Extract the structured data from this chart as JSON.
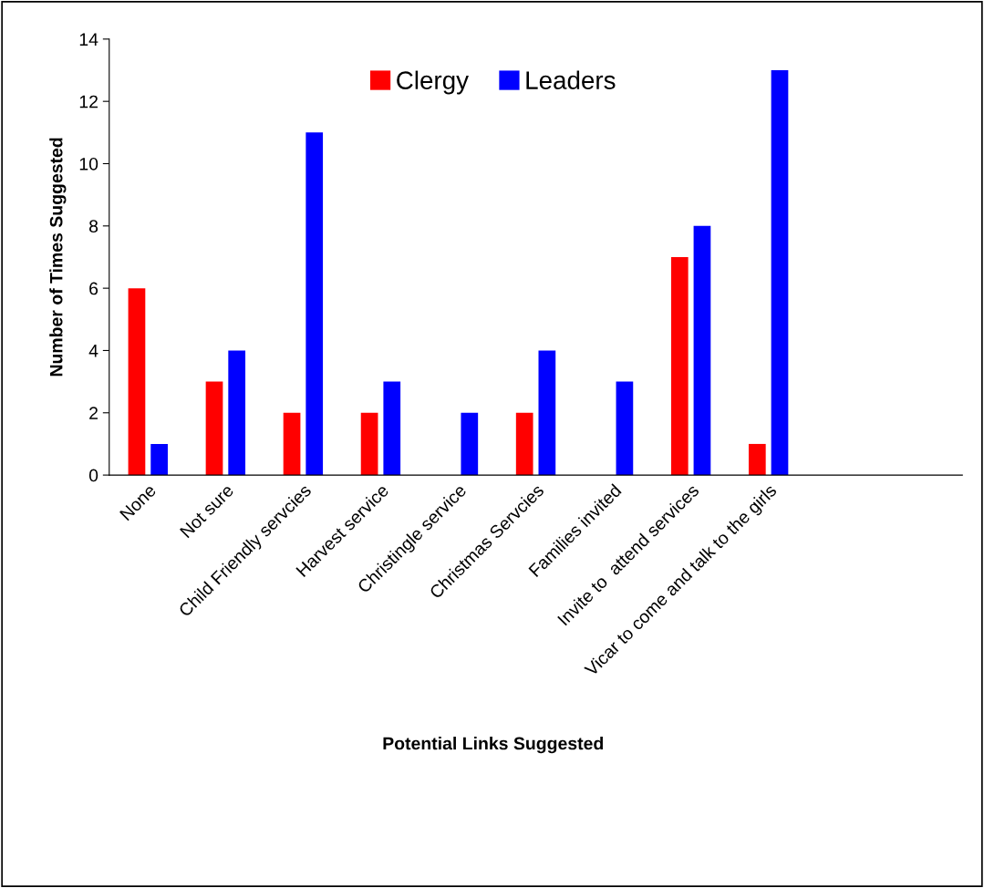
{
  "chart_data": {
    "type": "bar",
    "xlabel": "Potential Links Suggested",
    "ylabel": "Number of Times Suggested",
    "categories": [
      "None",
      "Not sure",
      "Child Friendly servcies",
      "Harvest service",
      "Christingle service",
      "Christmas Servcies",
      "Families invited",
      "Invite to  attend services",
      "Vicar to come and talk to the girls",
      null,
      null
    ],
    "series": [
      {
        "name": "Clergy",
        "color": "#ff0000",
        "values": [
          6,
          3,
          2,
          2,
          null,
          2,
          null,
          7,
          1,
          null,
          null
        ]
      },
      {
        "name": "Leaders",
        "color": "#0000ff",
        "values": [
          1,
          4,
          11,
          3,
          2,
          4,
          3,
          8,
          13,
          null,
          null
        ]
      }
    ],
    "ylim": [
      0,
      14
    ],
    "yticks": [
      0,
      2,
      4,
      6,
      8,
      10,
      12,
      14
    ],
    "grid": false,
    "legend": "top"
  }
}
